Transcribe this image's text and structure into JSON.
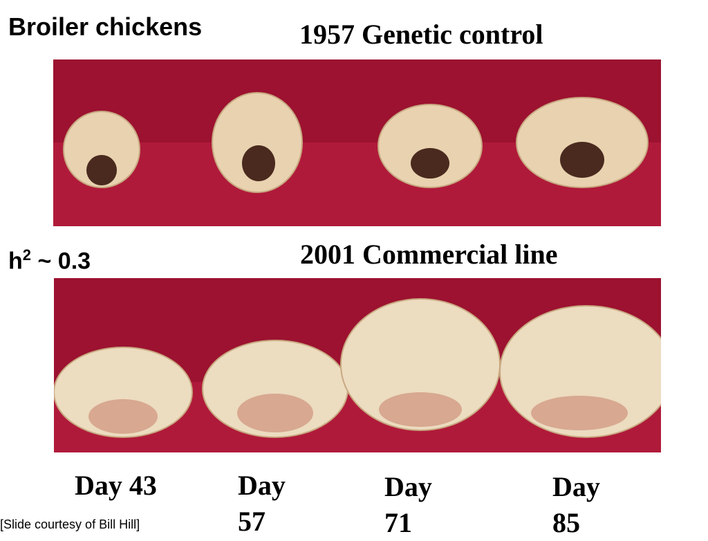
{
  "header": {
    "title": "Broiler chickens"
  },
  "panels": [
    {
      "caption": "1957 Genetic control"
    },
    {
      "caption": "2001 Commercial line"
    }
  ],
  "heritability": {
    "symbol": "h",
    "superscript": "2",
    "value_text": "~ 0.3"
  },
  "days": [
    "Day 43",
    "Day 57",
    "Day 71",
    "Day 85"
  ],
  "credit": "[Slide courtesy of Bill Hill]"
}
